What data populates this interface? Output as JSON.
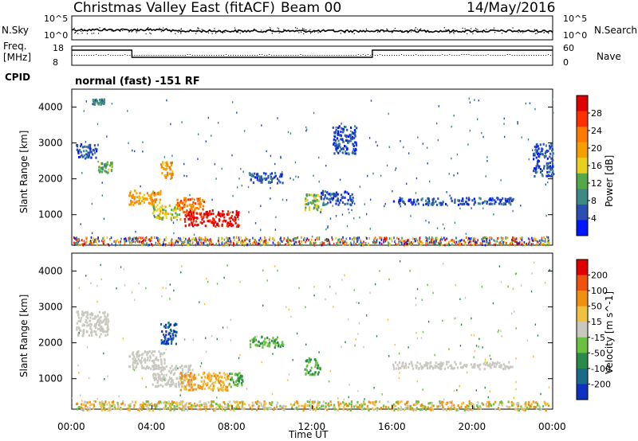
{
  "header": {
    "title": "Christmas Valley East (fitACF)",
    "beam": "Beam 00",
    "date": "14/May/2016"
  },
  "top_panels": {
    "nsky_label": "N.Sky",
    "nsky_ticks": [
      "10^5",
      "10^0"
    ],
    "nsearch_label": "N.Search",
    "nsearch_ticks": [
      "10^5",
      "10^0"
    ],
    "freq_label": "Freq.",
    "freq_unit": "[MHz]",
    "freq_ticks": [
      "18",
      "8"
    ],
    "nave_label": "Nave",
    "nave_ticks": [
      "60",
      "0"
    ],
    "cpid_label": "CPID",
    "cpid_text": "normal (fast) -151 RF",
    "freq_segments": [
      {
        "from": "00:00",
        "to": "03:00",
        "level": "high"
      },
      {
        "from": "03:00",
        "to": "15:00",
        "level": "low"
      },
      {
        "from": "15:00",
        "to": "24:00",
        "level": "high"
      }
    ]
  },
  "chart_data": [
    {
      "type": "heatmap",
      "name": "power",
      "ylabel": "Slant Range [km]",
      "yticks": [
        "1000",
        "2000",
        "3000",
        "4000"
      ],
      "ylim": [
        150,
        4500
      ],
      "colorbar_label": "Power [dB]",
      "colorbar_ticks": [
        "4",
        "8",
        "12",
        "16",
        "20",
        "24",
        "28"
      ],
      "colorbar_colors": [
        "#0018ff",
        "#2a4fb0",
        "#3c8a86",
        "#55a84a",
        "#e8d020",
        "#f5a000",
        "#ff7a00",
        "#ff3000",
        "#e00000"
      ],
      "regions": [
        {
          "t0": 1.0,
          "t1": 1.6,
          "r0": 4100,
          "r1": 4250,
          "level": 2
        },
        {
          "t0": 0.2,
          "t1": 1.3,
          "r0": 2600,
          "r1": 3000,
          "level": 1
        },
        {
          "t0": 1.3,
          "t1": 2.0,
          "r0": 2200,
          "r1": 2500,
          "level": 3
        },
        {
          "t0": 2.8,
          "t1": 4.4,
          "r0": 1300,
          "r1": 1700,
          "level": 5
        },
        {
          "t0": 4.0,
          "t1": 5.4,
          "r0": 900,
          "r1": 1300,
          "level": 4
        },
        {
          "t0": 5.2,
          "t1": 6.6,
          "r0": 1050,
          "r1": 1500,
          "level": 6
        },
        {
          "t0": 5.6,
          "t1": 8.3,
          "r0": 700,
          "r1": 1150,
          "level": 8
        },
        {
          "t0": 4.4,
          "t1": 5.0,
          "r0": 2000,
          "r1": 2500,
          "level": 5
        },
        {
          "t0": 8.8,
          "t1": 10.5,
          "r0": 1900,
          "r1": 2200,
          "level": 1
        },
        {
          "t0": 11.6,
          "t1": 12.4,
          "r0": 1100,
          "r1": 1600,
          "level": 3
        },
        {
          "t0": 12.4,
          "t1": 14.0,
          "r0": 1300,
          "r1": 1700,
          "level": 1
        },
        {
          "t0": 16.0,
          "t1": 22.0,
          "r0": 1300,
          "r1": 1500,
          "level": 1
        },
        {
          "t0": 13.0,
          "t1": 14.2,
          "r0": 2700,
          "r1": 3500,
          "level": 1
        },
        {
          "t0": 23.0,
          "t1": 24.0,
          "r0": 2100,
          "r1": 3000,
          "level": 1
        }
      ]
    },
    {
      "type": "heatmap",
      "name": "velocity",
      "ylabel": "Slant Range [km]",
      "yticks": [
        "1000",
        "2000",
        "3000",
        "4000"
      ],
      "ylim": [
        150,
        4500
      ],
      "colorbar_label": "Velocity [m s^-1]",
      "colorbar_ticks": [
        "200",
        "100",
        "50",
        "15",
        "-15",
        "-50",
        "-100",
        "-200"
      ],
      "colorbar_colors": [
        "#1030c0",
        "#1a6a8a",
        "#2a8a4a",
        "#6ac040",
        "#c8c8c0",
        "#f0c040",
        "#f09010",
        "#f05010",
        "#e00000"
      ],
      "regions": [
        {
          "t0": 0.2,
          "t1": 1.8,
          "r0": 2200,
          "r1": 2900,
          "level": "ground"
        },
        {
          "t0": 2.8,
          "t1": 4.6,
          "r0": 1300,
          "r1": 1800,
          "level": "ground"
        },
        {
          "t0": 4.0,
          "t1": 6.0,
          "r0": 800,
          "r1": 1400,
          "level": "ground"
        },
        {
          "t0": 5.4,
          "t1": 7.8,
          "r0": 700,
          "r1": 1200,
          "level": "neg"
        },
        {
          "t0": 7.8,
          "t1": 8.5,
          "r0": 800,
          "r1": 1200,
          "level": "pos"
        },
        {
          "t0": 4.4,
          "t1": 5.2,
          "r0": 2000,
          "r1": 2600,
          "level": "strong_pos"
        },
        {
          "t0": 11.6,
          "t1": 12.4,
          "r0": 1100,
          "r1": 1600,
          "level": "pos"
        },
        {
          "t0": 8.8,
          "t1": 10.5,
          "r0": 1900,
          "r1": 2200,
          "level": "pos"
        },
        {
          "t0": 16.0,
          "t1": 22.0,
          "r0": 1300,
          "r1": 1500,
          "level": "ground"
        },
        {
          "t0": 0.2,
          "t1": 23.8,
          "r0": 150,
          "r1": 400,
          "level": "mixed"
        }
      ]
    }
  ],
  "x_axis": {
    "ticks": [
      "00:00",
      "04:00",
      "08:00",
      "12:00",
      "16:00",
      "20:00",
      "00:00"
    ],
    "label": "Time UT"
  }
}
